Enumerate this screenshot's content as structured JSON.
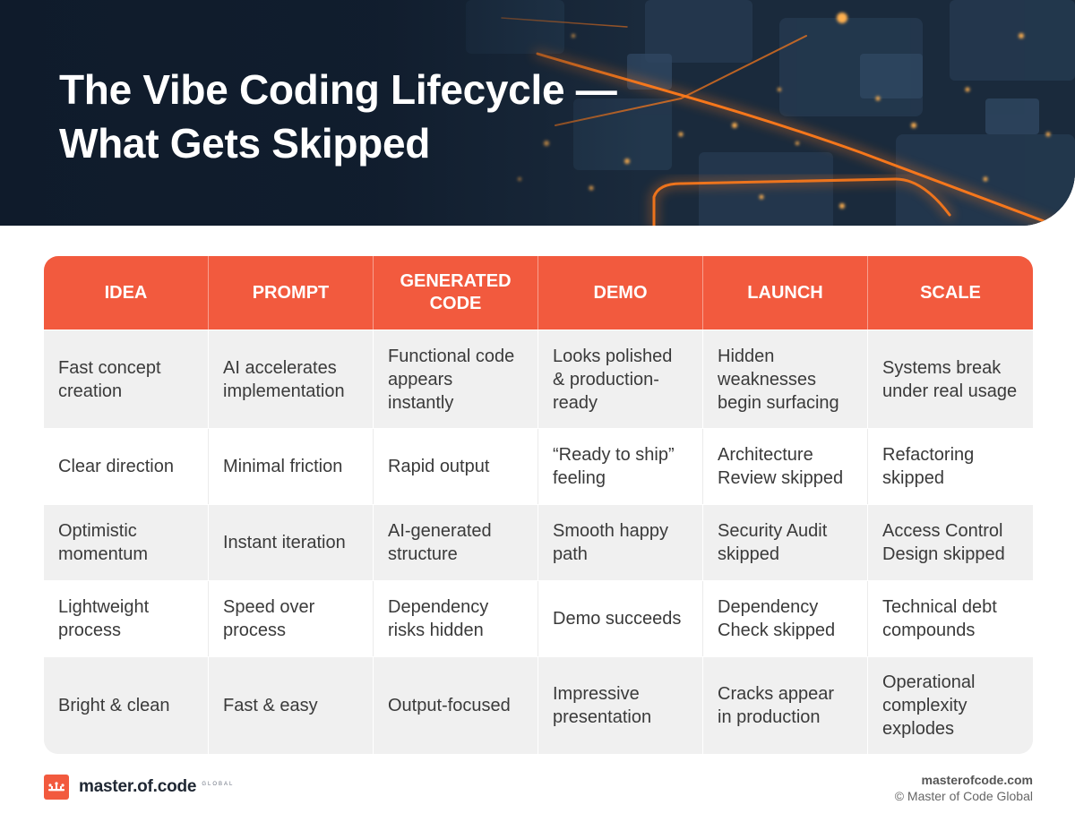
{
  "header": {
    "title_line1": "The Vibe Coding Lifecycle —",
    "title_line2": "What Gets Skipped"
  },
  "colors": {
    "accent": "#f25a3e",
    "banner_bg": "#0f1b2b",
    "glow": "#ff8a2a"
  },
  "table": {
    "columns": [
      "IDEA",
      "PROMPT",
      "GENERATED CODE",
      "DEMO",
      "LAUNCH",
      "SCALE"
    ],
    "rows": [
      [
        "Fast concept creation",
        "AI accelerates implementation",
        "Functional code appears instantly",
        "Looks polished & production-ready",
        "Hidden weaknesses begin surfacing",
        "Systems break under real usage"
      ],
      [
        "Clear direction",
        "Minimal friction",
        "Rapid output",
        "“Ready to ship” feeling",
        "Architecture Review skipped",
        "Refactoring skipped"
      ],
      [
        "Optimistic momentum",
        "Instant iteration",
        "AI-generated structure",
        "Smooth happy path",
        "Security Audit skipped",
        "Access Control Design skipped"
      ],
      [
        "Lightweight process",
        "Speed over process",
        "Dependency risks hidden",
        "Demo succeeds",
        "Dependency Check skipped",
        "Technical debt compounds"
      ],
      [
        "Bright & clean",
        "Fast & easy",
        "Output-focused",
        "Impressive presentation",
        "Cracks appear in production",
        "Operational complexity explodes"
      ]
    ]
  },
  "footer": {
    "logo_text": "master.of.code",
    "logo_sub": "GLOBAL",
    "logo_icon": "crown-icon",
    "site": "masterofcode.com",
    "copyright": "© Master of Code Global"
  }
}
